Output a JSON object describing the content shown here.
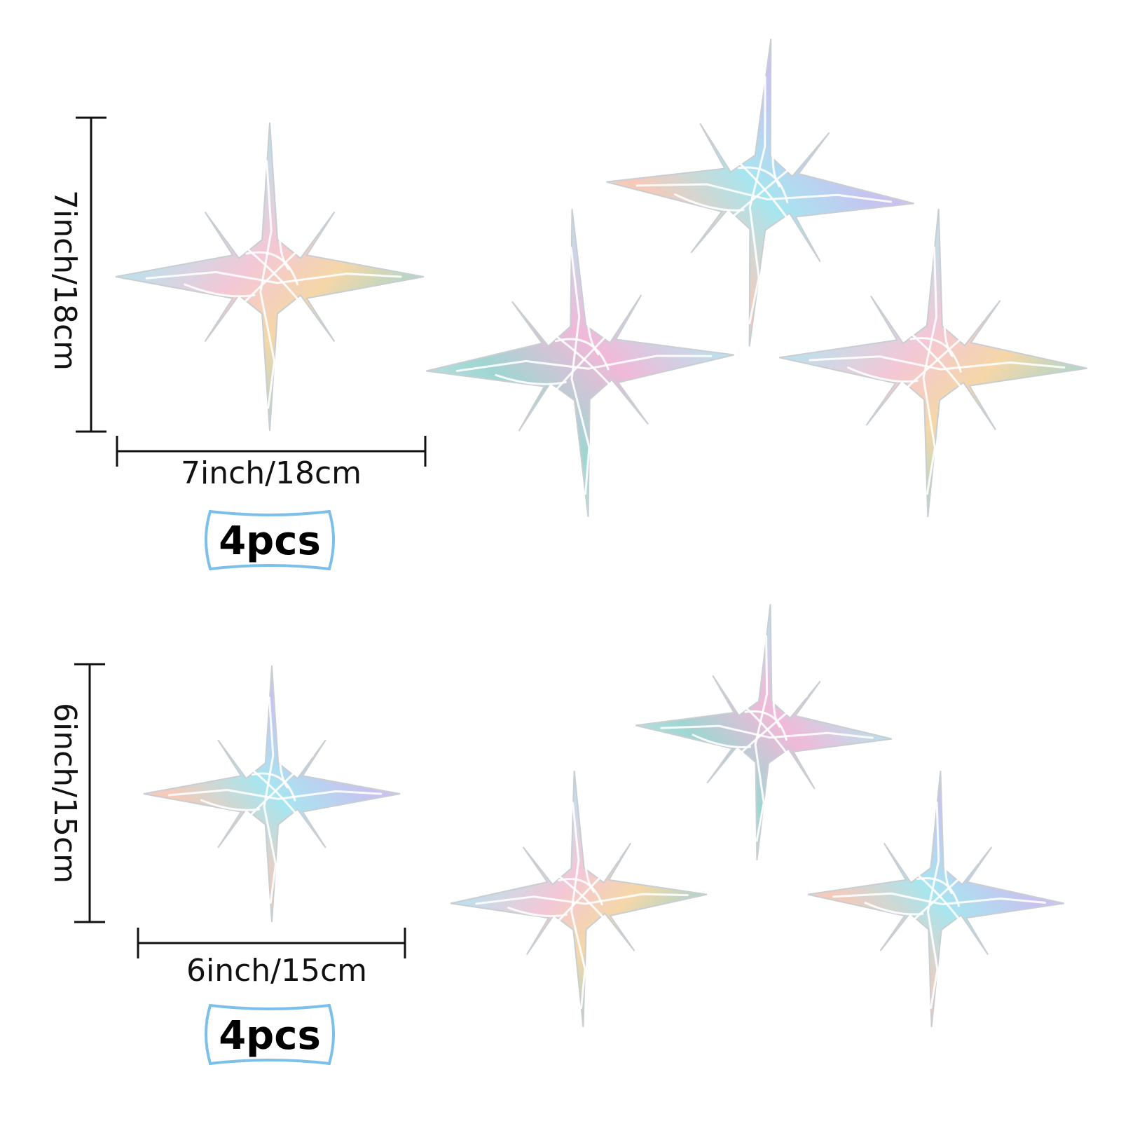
{
  "colors": {
    "badge_border": "#7cc0ea",
    "dimension_line": "#111111",
    "star_palette": [
      "#b8e3ee",
      "#e0e4e8",
      "#f3c7d6",
      "#f5d7a8",
      "#c9c1f0",
      "#9fd6d2"
    ]
  },
  "large_set": {
    "height_label": "7inch/18cm",
    "width_label": "7inch/18cm",
    "quantity_label": "4pcs"
  },
  "small_set": {
    "height_label": "6inch/15cm",
    "width_label": "6inch/15cm",
    "quantity_label": "4pcs"
  },
  "stars": {
    "large": [
      {
        "id": "large-reference",
        "rotation_deg": 0
      },
      {
        "id": "large-cluster-top",
        "rotation_deg": 4
      },
      {
        "id": "large-cluster-left",
        "rotation_deg": -3
      },
      {
        "id": "large-cluster-right",
        "rotation_deg": 2
      }
    ],
    "small": [
      {
        "id": "small-reference",
        "rotation_deg": 0
      },
      {
        "id": "small-cluster-top",
        "rotation_deg": 3
      },
      {
        "id": "small-cluster-left",
        "rotation_deg": -2
      },
      {
        "id": "small-cluster-right",
        "rotation_deg": 2
      }
    ]
  }
}
